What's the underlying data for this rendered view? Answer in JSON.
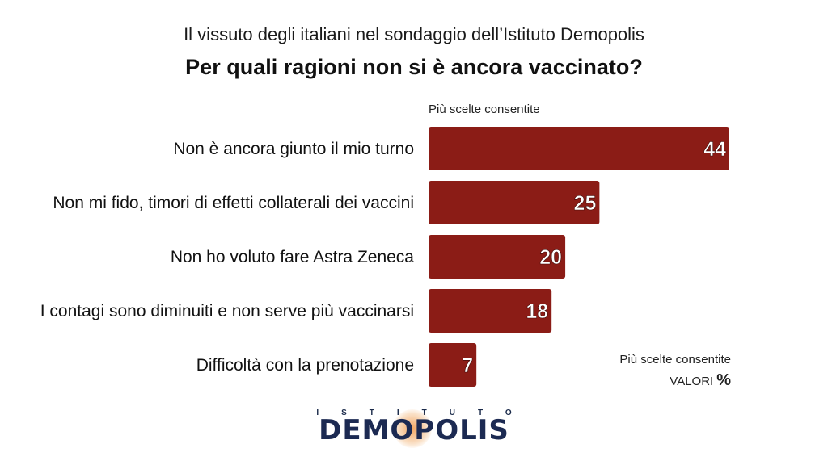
{
  "header": {
    "subtitle": "Il vissuto degli italiani nel sondaggio dell’Istituto Demopolis",
    "title": "Per quali ragioni non si è ancora vaccinato?"
  },
  "notes": {
    "top": "Più scelte consentite",
    "bottom": "Più scelte consentite",
    "valori_label": "VALORI",
    "valori_unit": "%"
  },
  "logo": {
    "top_text": "ISTITUTO",
    "main_text": "DEMOPOLIS"
  },
  "colors": {
    "bar": "#8b1c16",
    "bar_label": "#ffffff"
  },
  "chart_data": {
    "type": "bar",
    "orientation": "horizontal",
    "categories": [
      "Non è ancora giunto il mio turno",
      "Non mi fido, timori di effetti collaterali dei vaccini",
      "Non ho voluto fare Astra Zeneca",
      "I contagi sono diminuiti e non serve più vaccinarsi",
      "Difficoltà con la prenotazione"
    ],
    "values": [
      44,
      25,
      20,
      18,
      7
    ],
    "xlim": [
      0,
      44
    ],
    "grid": false,
    "legend": "none"
  }
}
